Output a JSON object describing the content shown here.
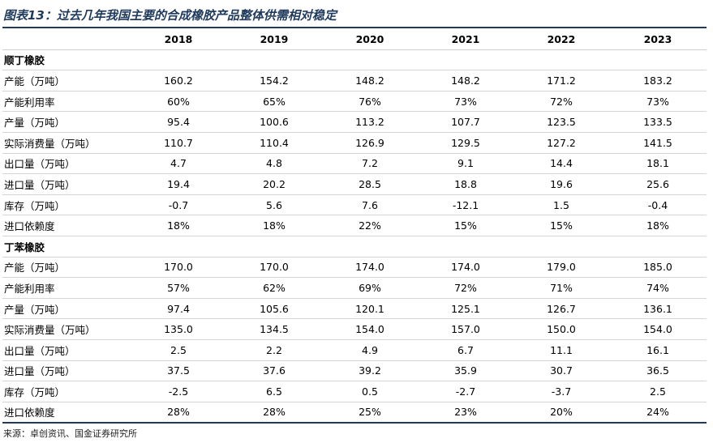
{
  "title": "图表13：过去几年我国主要的合成橡胶产品整体供需相对稳定",
  "years": [
    "2018",
    "2019",
    "2020",
    "2021",
    "2022",
    "2023"
  ],
  "sections": [
    {
      "name": "顺丁橡胶",
      "rows": [
        {
          "label": "产能（万吨）",
          "values": [
            "160.2",
            "154.2",
            "148.2",
            "148.2",
            "171.2",
            "183.2"
          ]
        },
        {
          "label": "产能利用率",
          "values": [
            "60%",
            "65%",
            "76%",
            "73%",
            "72%",
            "73%"
          ]
        },
        {
          "label": "产量（万吨）",
          "values": [
            "95.4",
            "100.6",
            "113.2",
            "107.7",
            "123.5",
            "133.5"
          ]
        },
        {
          "label": "实际消费量（万吨）",
          "values": [
            "110.7",
            "110.4",
            "126.9",
            "129.5",
            "127.2",
            "141.5"
          ]
        },
        {
          "label": "出口量（万吨）",
          "values": [
            "4.7",
            "4.8",
            "7.2",
            "9.1",
            "14.4",
            "18.1"
          ]
        },
        {
          "label": "进口量（万吨）",
          "values": [
            "19.4",
            "20.2",
            "28.5",
            "18.8",
            "19.6",
            "25.6"
          ]
        },
        {
          "label": "库存（万吨）",
          "values": [
            "-0.7",
            "5.6",
            "7.6",
            "-12.1",
            "1.5",
            "-0.4"
          ]
        },
        {
          "label": "进口依赖度",
          "values": [
            "18%",
            "18%",
            "22%",
            "15%",
            "15%",
            "18%"
          ]
        }
      ]
    },
    {
      "name": "丁苯橡胶",
      "rows": [
        {
          "label": "产能（万吨）",
          "values": [
            "170.0",
            "170.0",
            "174.0",
            "174.0",
            "179.0",
            "185.0"
          ]
        },
        {
          "label": "产能利用率",
          "values": [
            "57%",
            "62%",
            "69%",
            "72%",
            "71%",
            "74%"
          ]
        },
        {
          "label": "产量（万吨）",
          "values": [
            "97.4",
            "105.6",
            "120.1",
            "125.1",
            "126.7",
            "136.1"
          ]
        },
        {
          "label": "实际消费量（万吨）",
          "values": [
            "135.0",
            "134.5",
            "154.0",
            "157.0",
            "150.0",
            "154.0"
          ]
        },
        {
          "label": "出口量（万吨）",
          "values": [
            "2.5",
            "2.2",
            "4.9",
            "6.7",
            "11.1",
            "16.1"
          ]
        },
        {
          "label": "进口量（万吨）",
          "values": [
            "37.5",
            "37.6",
            "39.2",
            "35.9",
            "30.7",
            "36.5"
          ]
        },
        {
          "label": "库存（万吨）",
          "values": [
            "-2.5",
            "6.5",
            "0.5",
            "-2.7",
            "-3.7",
            "2.5"
          ]
        },
        {
          "label": "进口依赖度",
          "values": [
            "28%",
            "28%",
            "25%",
            "23%",
            "20%",
            "24%"
          ]
        }
      ]
    }
  ],
  "source": "来源：卓创资讯、国金证券研究所"
}
